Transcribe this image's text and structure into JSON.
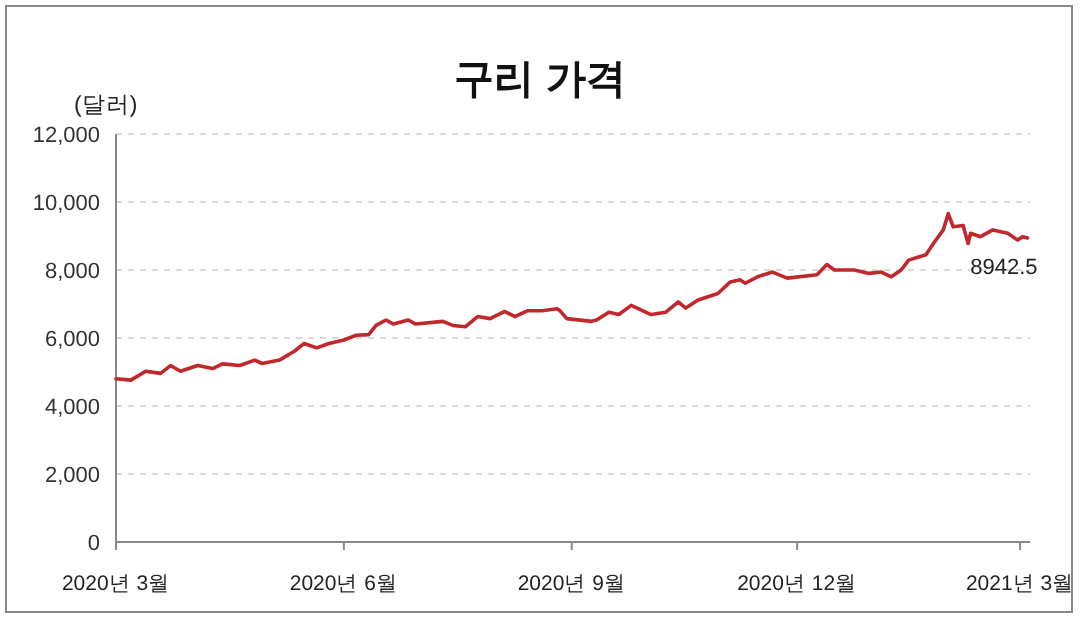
{
  "chart_data": {
    "type": "line",
    "title": "구리 가격",
    "ylabel": "(달러)",
    "x": [
      "2020-03-01",
      "2020-03-07",
      "2020-03-13",
      "2020-03-19",
      "2020-03-23",
      "2020-03-27",
      "2020-04-03",
      "2020-04-09",
      "2020-04-13",
      "2020-04-20",
      "2020-04-26",
      "2020-04-29",
      "2020-05-06",
      "2020-05-12",
      "2020-05-16",
      "2020-05-21",
      "2020-05-26",
      "2020-06-01",
      "2020-06-06",
      "2020-06-11",
      "2020-06-14",
      "2020-06-18",
      "2020-06-21",
      "2020-06-27",
      "2020-06-30",
      "2020-07-11",
      "2020-07-15",
      "2020-07-20",
      "2020-07-25",
      "2020-07-30",
      "2020-08-05",
      "2020-08-09",
      "2020-08-14",
      "2020-08-20",
      "2020-08-26",
      "2020-08-27",
      "2020-08-30",
      "2020-09-09",
      "2020-09-11",
      "2020-09-16",
      "2020-09-20",
      "2020-09-25",
      "2020-10-03",
      "2020-10-09",
      "2020-10-14",
      "2020-10-17",
      "2020-10-22",
      "2020-10-30",
      "2020-11-04",
      "2020-11-08",
      "2020-11-10",
      "2020-11-15",
      "2020-11-21",
      "2020-11-27",
      "2020-12-09",
      "2020-12-13",
      "2020-12-16",
      "2020-12-24",
      "2020-12-30",
      "2021-01-04",
      "2021-01-08",
      "2021-01-12",
      "2021-01-15",
      "2021-01-22",
      "2021-01-25",
      "2021-01-29",
      "2021-01-31",
      "2021-02-02",
      "2021-02-06",
      "2021-02-08",
      "2021-02-09",
      "2021-02-13",
      "2021-02-18",
      "2021-02-24",
      "2021-02-28",
      "2021-03-02",
      "2021-03-04"
    ],
    "series": [
      {
        "color": "#c0282d",
        "values": [
          4800,
          4760,
          5020,
          4960,
          5190,
          5020,
          5190,
          5100,
          5240,
          5190,
          5350,
          5250,
          5350,
          5610,
          5840,
          5710,
          5840,
          5940,
          6080,
          6100,
          6370,
          6530,
          6410,
          6530,
          6410,
          6490,
          6370,
          6330,
          6630,
          6570,
          6780,
          6630,
          6800,
          6800,
          6860,
          6820,
          6570,
          6490,
          6530,
          6760,
          6690,
          6960,
          6690,
          6760,
          7060,
          6880,
          7120,
          7310,
          7650,
          7710,
          7610,
          7800,
          7940,
          7760,
          7860,
          8160,
          8000,
          8000,
          7900,
          7940,
          7800,
          8000,
          8290,
          8450,
          8780,
          9180,
          9660,
          9270,
          9310,
          8780,
          9080,
          8980,
          9180,
          9080,
          8880,
          8980,
          8942.5
        ]
      }
    ],
    "annotations": [
      {
        "text": "8942.5",
        "x": "2021-03-04",
        "y": 8942.5
      }
    ],
    "xlim": [
      "2020-03-01",
      "2021-03-05"
    ],
    "xticks": [
      {
        "value": "2020-03-01",
        "label": "2020년 3월"
      },
      {
        "value": "2020-06-01",
        "label": "2020년 6월"
      },
      {
        "value": "2020-09-01",
        "label": "2020년 9월"
      },
      {
        "value": "2020-12-01",
        "label": "2020년 12월"
      },
      {
        "value": "2021-03-01",
        "label": "2021년 3월"
      }
    ],
    "ylim": [
      0,
      12000
    ],
    "yticks": [
      {
        "value": 0,
        "label": "0"
      },
      {
        "value": 2000,
        "label": "2,000"
      },
      {
        "value": 4000,
        "label": "4,000"
      },
      {
        "value": 6000,
        "label": "6,000"
      },
      {
        "value": 8000,
        "label": "8,000"
      },
      {
        "value": 10000,
        "label": "10,000"
      },
      {
        "value": 12000,
        "label": "12,000"
      }
    ],
    "grid": "y",
    "marker": "none",
    "line_style": "solid"
  }
}
